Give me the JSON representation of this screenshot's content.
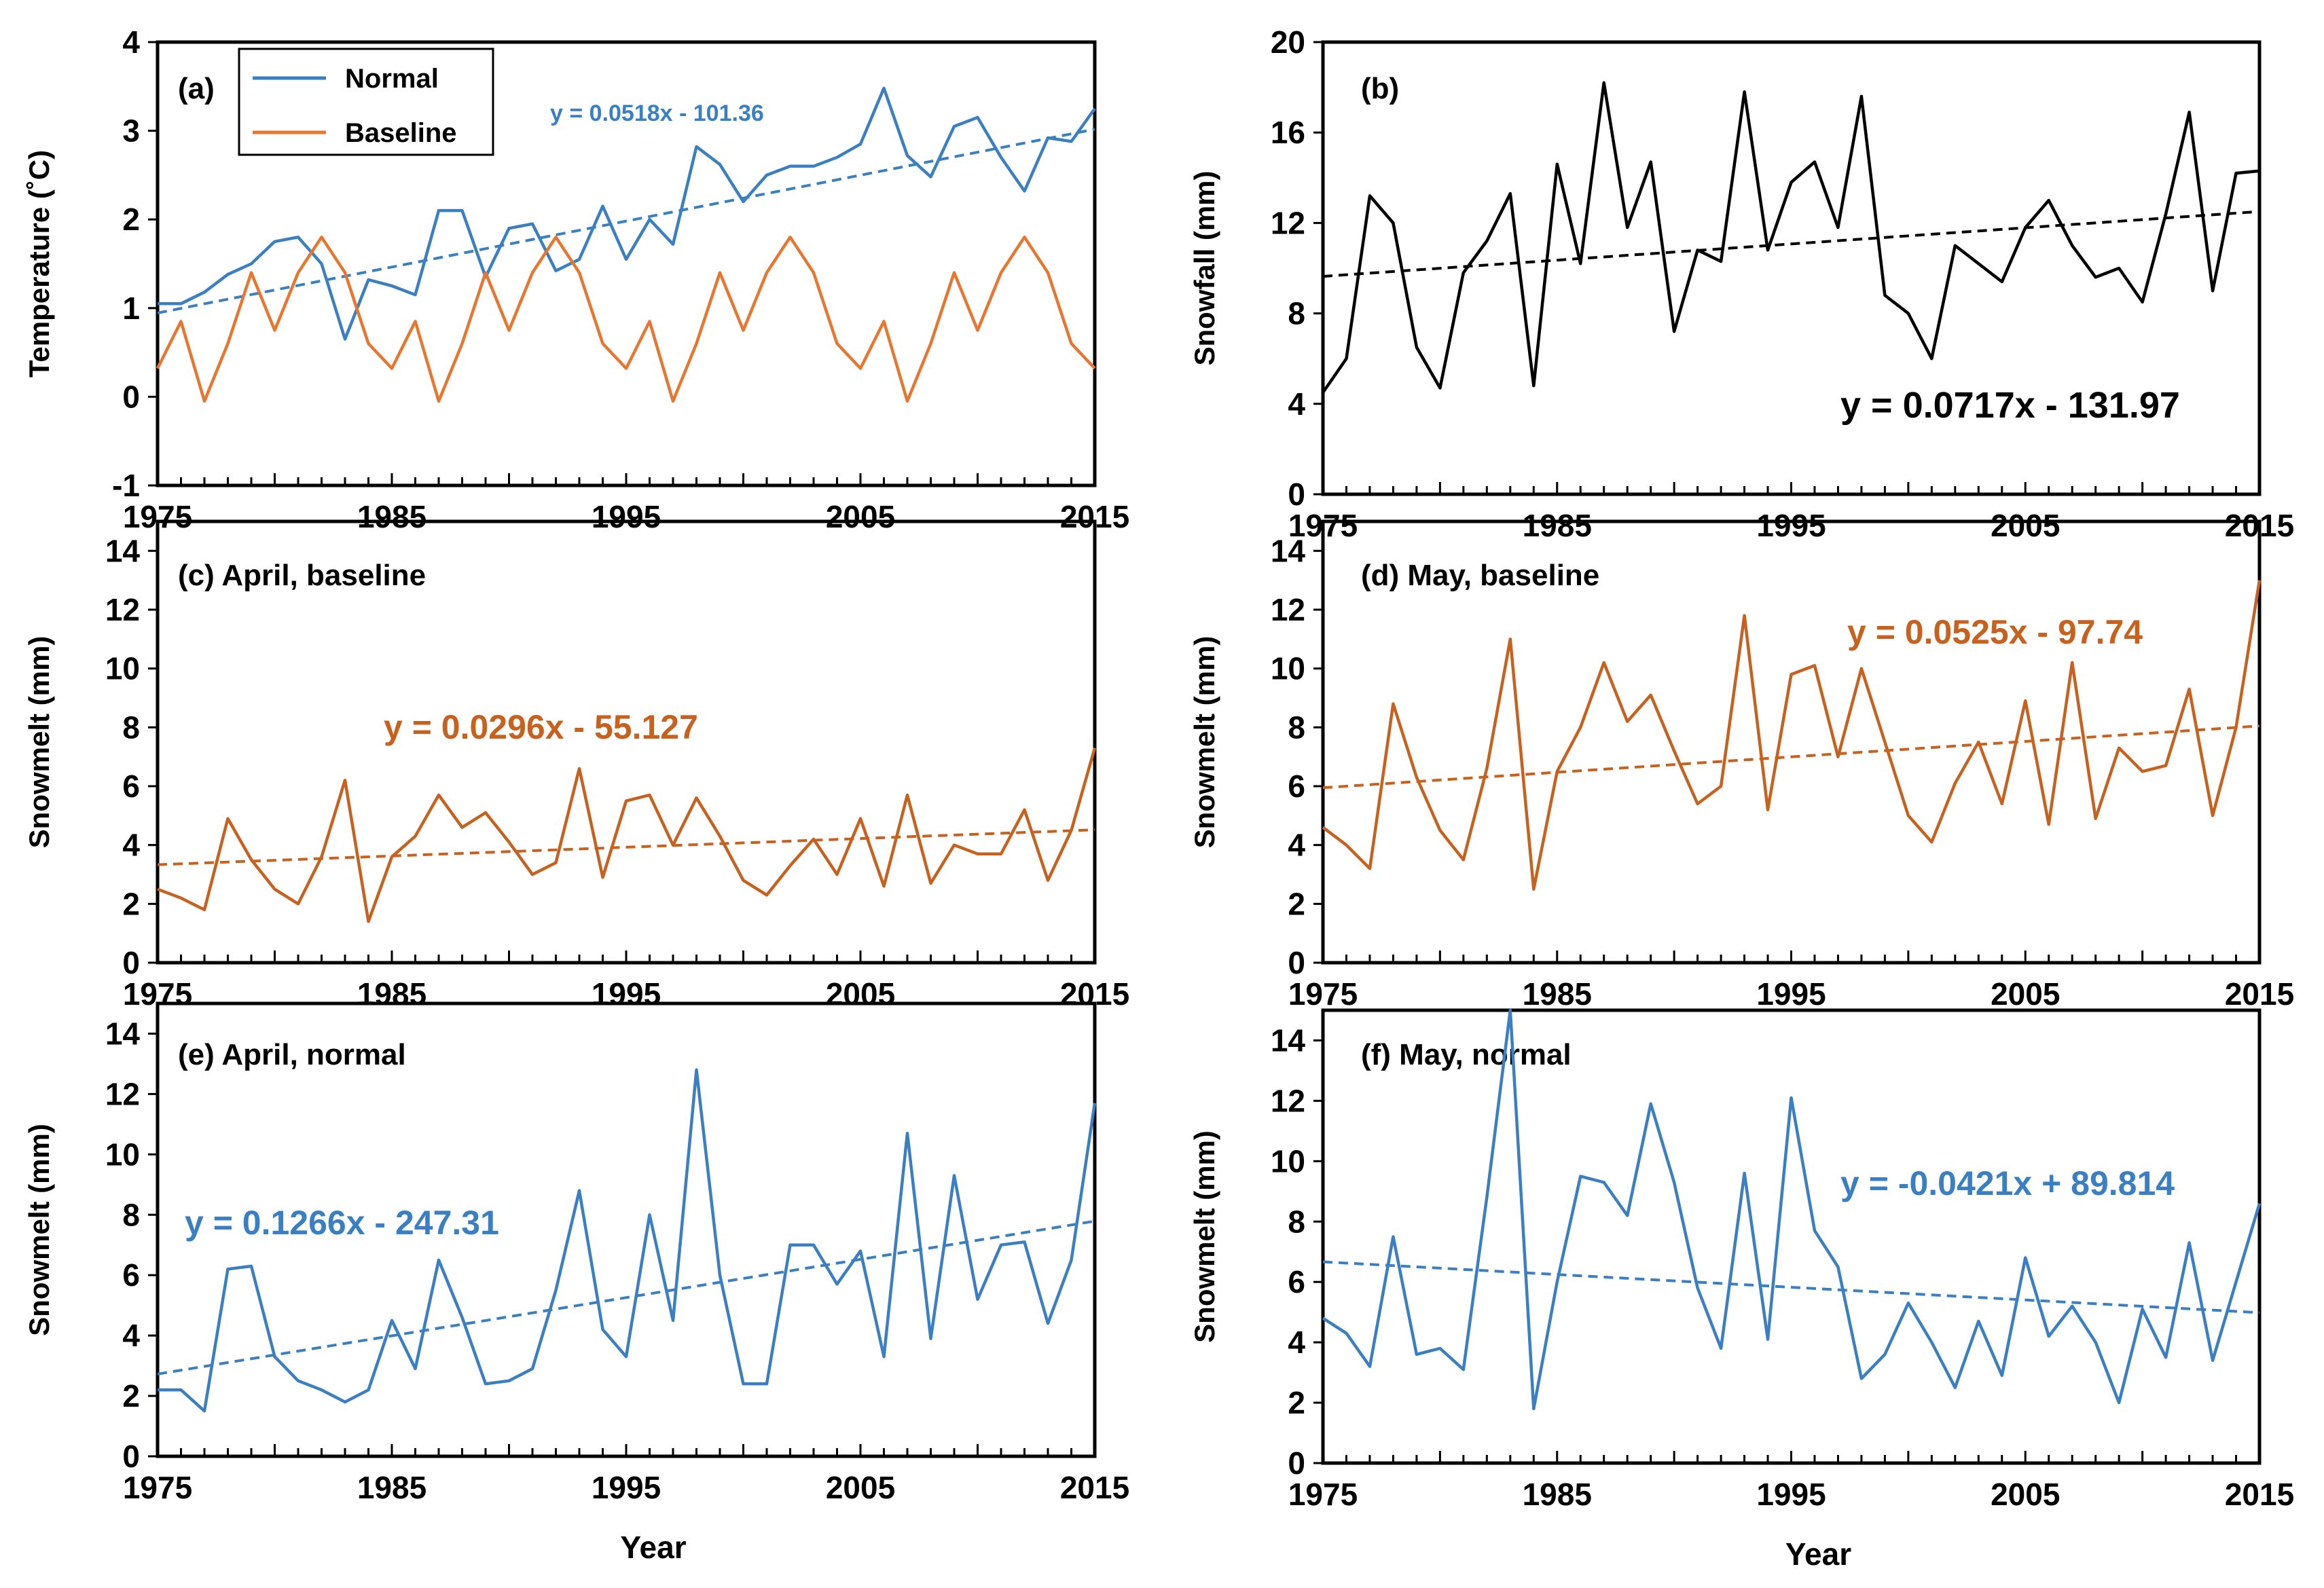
{
  "colors": {
    "normal": "#3a7fc4",
    "baseline": "#e8762f",
    "snowmelt_baseline": "#c8611e",
    "black": "#000000"
  },
  "x_label": "Year",
  "x_ticks": [
    "1975",
    "1985",
    "1995",
    "2005",
    "2015"
  ],
  "chart_data": [
    {
      "id": "a",
      "type": "line",
      "title": "(a)",
      "ylabel": "Temperature (˚C)",
      "xlabel": "",
      "xlim": [
        1975,
        2015
      ],
      "ylim": [
        -1,
        4
      ],
      "yticks": [
        "-1",
        "0",
        "1",
        "2",
        "3",
        "4"
      ],
      "legend": {
        "position": "top-left",
        "entries": [
          "Normal",
          "Baseline"
        ]
      },
      "series": [
        {
          "name": "Normal",
          "color": "normal",
          "values": [
            1.05,
            1.05,
            1.18,
            1.38,
            1.5,
            1.75,
            1.8,
            1.5,
            0.65,
            1.32,
            1.25,
            1.15,
            2.1,
            2.1,
            1.35,
            1.9,
            1.95,
            1.42,
            1.55,
            2.15,
            1.55,
            2.0,
            1.72,
            2.82,
            2.62,
            2.2,
            2.5,
            2.6,
            2.6,
            2.7,
            2.85,
            3.48,
            2.72,
            2.48,
            3.05,
            3.15,
            2.7,
            2.32,
            2.92,
            2.88,
            3.25
          ]
        },
        {
          "name": "Baseline",
          "color": "baseline",
          "values": [
            0.32,
            0.85,
            -0.05,
            0.6,
            1.4,
            0.75,
            1.4,
            1.8,
            1.4,
            0.6,
            0.32,
            0.85,
            -0.05,
            0.6,
            1.4,
            0.75,
            1.4,
            1.8,
            1.4,
            0.6,
            0.32,
            0.85,
            -0.05,
            0.6,
            1.4,
            0.75,
            1.4,
            1.8,
            1.4,
            0.6,
            0.32,
            0.85,
            -0.05,
            0.6,
            1.4,
            0.75,
            1.4,
            1.8,
            1.4,
            0.6,
            0.32
          ]
        }
      ],
      "trend": {
        "color": "normal",
        "slope": 0.0518,
        "intercept": -101.36,
        "label": "y = 0.0518x - 101.36"
      }
    },
    {
      "id": "b",
      "type": "line",
      "title": "(b)",
      "ylabel": "Snowfall (mm)",
      "xlabel": "",
      "xlim": [
        1975,
        2015
      ],
      "ylim": [
        0,
        20
      ],
      "yticks": [
        "0",
        "4",
        "8",
        "12",
        "16",
        "20"
      ],
      "series": [
        {
          "name": "Snowfall",
          "color": "black",
          "values": [
            4.5,
            6.0,
            13.2,
            12.0,
            6.5,
            4.7,
            9.8,
            11.2,
            13.3,
            4.8,
            14.6,
            10.2,
            18.2,
            11.8,
            14.7,
            7.2,
            10.8,
            10.3,
            17.8,
            10.8,
            13.8,
            14.7,
            11.8,
            17.6,
            8.8,
            8.0,
            6.0,
            11.0,
            10.2,
            9.4,
            11.8,
            13.0,
            11.0,
            9.6,
            10.0,
            8.5,
            12.4,
            16.9,
            9.0,
            14.2,
            14.3
          ]
        }
      ],
      "trend": {
        "color": "black",
        "slope": 0.0717,
        "intercept": -131.97,
        "label": "y = 0.0717x - 131.97"
      }
    },
    {
      "id": "c",
      "type": "line",
      "title": "(c) April, baseline",
      "ylabel": "Snowmelt (mm)",
      "xlabel": "",
      "xlim": [
        1975,
        2015
      ],
      "ylim": [
        0,
        15
      ],
      "yticks": [
        "0",
        "2",
        "4",
        "6",
        "8",
        "10",
        "12",
        "14"
      ],
      "series": [
        {
          "name": "April baseline",
          "color": "snowmelt_baseline",
          "values": [
            2.5,
            2.2,
            1.8,
            4.9,
            3.5,
            2.5,
            2.0,
            3.6,
            6.2,
            1.4,
            3.6,
            4.3,
            5.7,
            4.6,
            5.1,
            4.1,
            3.0,
            3.4,
            6.6,
            2.9,
            5.5,
            5.7,
            4.0,
            5.6,
            4.3,
            2.8,
            2.3,
            3.3,
            4.2,
            3.0,
            4.9,
            2.6,
            5.7,
            2.7,
            4.0,
            3.7,
            3.7,
            5.2,
            2.8,
            4.5,
            7.3
          ]
        }
      ],
      "trend": {
        "color": "snowmelt_baseline",
        "slope": 0.0296,
        "intercept": -55.127,
        "label": "y = 0.0296x - 55.127"
      }
    },
    {
      "id": "d",
      "type": "line",
      "title": "(d) May, baseline",
      "ylabel": "Snowmelt (mm)",
      "xlabel": "",
      "xlim": [
        1975,
        2015
      ],
      "ylim": [
        0,
        15
      ],
      "yticks": [
        "0",
        "2",
        "4",
        "6",
        "8",
        "10",
        "12",
        "14"
      ],
      "series": [
        {
          "name": "May baseline",
          "color": "snowmelt_baseline",
          "values": [
            4.6,
            4.0,
            3.2,
            8.8,
            6.3,
            4.5,
            3.5,
            6.6,
            11.0,
            2.5,
            6.5,
            8.0,
            10.2,
            8.2,
            9.1,
            7.2,
            5.4,
            6.0,
            11.8,
            5.2,
            9.8,
            10.1,
            7.0,
            10.0,
            7.5,
            5.0,
            4.1,
            6.1,
            7.5,
            5.4,
            8.9,
            4.7,
            10.2,
            4.9,
            7.3,
            6.5,
            6.7,
            9.3,
            5.0,
            8.0,
            13.0
          ]
        }
      ],
      "trend": {
        "color": "snowmelt_baseline",
        "slope": 0.0525,
        "intercept": -97.74,
        "label": "y = 0.0525x - 97.74"
      }
    },
    {
      "id": "e",
      "type": "line",
      "title": "(e) April, normal",
      "ylabel": "Snowmelt (mm)",
      "xlabel": "Year",
      "xlim": [
        1975,
        2015
      ],
      "ylim": [
        0,
        15
      ],
      "yticks": [
        "0",
        "2",
        "4",
        "6",
        "8",
        "10",
        "12",
        "14"
      ],
      "series": [
        {
          "name": "April normal",
          "color": "normal",
          "values": [
            2.2,
            2.2,
            1.5,
            6.2,
            6.3,
            3.3,
            2.5,
            2.2,
            1.8,
            2.2,
            4.5,
            2.9,
            6.5,
            4.6,
            2.4,
            2.5,
            2.9,
            5.5,
            8.8,
            4.2,
            3.3,
            8.0,
            4.5,
            12.8,
            6.0,
            2.4,
            2.4,
            7.0,
            7.0,
            5.7,
            6.8,
            3.3,
            10.7,
            3.9,
            9.3,
            5.2,
            7.0,
            7.1,
            4.4,
            6.5,
            11.7
          ]
        }
      ],
      "trend": {
        "color": "normal",
        "slope": 0.1266,
        "intercept": -247.31,
        "label": "y = 0.1266x - 247.31"
      }
    },
    {
      "id": "f",
      "type": "line",
      "title": "(f) May, normal",
      "ylabel": "Snowmelt (mm)",
      "xlabel": "Year",
      "xlim": [
        1975,
        2015
      ],
      "ylim": [
        0,
        15
      ],
      "yticks": [
        "0",
        "2",
        "4",
        "6",
        "8",
        "10",
        "12",
        "14"
      ],
      "series": [
        {
          "name": "May normal",
          "color": "normal",
          "values": [
            4.8,
            4.3,
            3.2,
            7.5,
            3.6,
            3.8,
            3.1,
            8.8,
            15.0,
            1.8,
            6.0,
            9.5,
            9.3,
            8.2,
            11.9,
            9.3,
            5.8,
            3.8,
            9.6,
            4.1,
            12.1,
            7.7,
            6.5,
            2.8,
            3.6,
            5.3,
            4.0,
            2.5,
            4.7,
            2.9,
            6.8,
            4.2,
            5.2,
            4.0,
            2.0,
            5.1,
            3.5,
            7.3,
            3.4,
            6.0,
            8.6
          ]
        }
      ],
      "trend": {
        "color": "normal",
        "slope": -0.0421,
        "intercept": 89.814,
        "label": "y = -0.0421x + 89.814"
      }
    }
  ]
}
